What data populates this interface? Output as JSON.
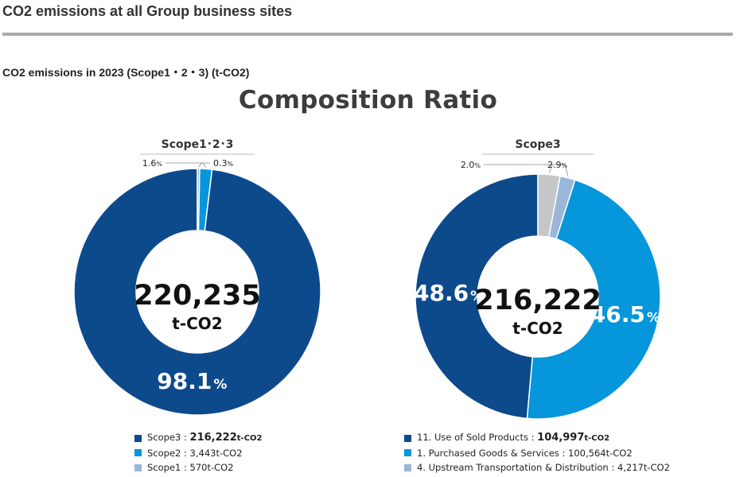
{
  "page": {
    "heading": "CO2 emissions at all Group business sites",
    "section_title": "CO2 emissions in 2023 (Scope1・2・3) (t-CO2)"
  },
  "figure": {
    "title": "Composition Ratio"
  },
  "colors": {
    "dark_blue": "#0d4a8c",
    "bright_blue": "#0696db",
    "light_blue": "#9ab6d9",
    "gray": "#c4c6c8"
  },
  "chart_data": [
    {
      "type": "pie",
      "title": "Scope1･2･3",
      "center_value": "220,235",
      "center_unit": "t-CO2",
      "slices": [
        {
          "name": "Scope3",
          "percent": 98.1,
          "label": "98.1",
          "label_suffix": "%",
          "color": "#0d4a8c",
          "label_style": "inside"
        },
        {
          "name": "Scope2",
          "percent": 1.6,
          "label": "1.6",
          "label_suffix": "%",
          "color": "#0696db",
          "label_style": "callout-left"
        },
        {
          "name": "Scope1",
          "percent": 0.3,
          "label": "0.3",
          "label_suffix": "%",
          "color": "#9ab6d9",
          "label_style": "callout-right"
        }
      ],
      "legend": [
        {
          "prefix": "Scope3 : ",
          "value": "216,222",
          "unit": "t-CO2",
          "emphasis": true,
          "color": "#0d4a8c"
        },
        {
          "prefix": "Scope2 : ",
          "value": "3,443t-CO2",
          "unit": "",
          "emphasis": false,
          "color": "#0696db"
        },
        {
          "prefix": "Scope1 : ",
          "value": "570t-CO2",
          "unit": "",
          "emphasis": false,
          "color": "#9ab6d9"
        }
      ]
    },
    {
      "type": "pie",
      "title": "Scope3",
      "center_value": "216,222",
      "center_unit": "t-CO2",
      "slices": [
        {
          "name": "11. Use of Sold Products",
          "percent": 48.6,
          "label": "48.6",
          "label_suffix": "%",
          "color": "#0d4a8c",
          "label_style": "inside"
        },
        {
          "name": "1. Purchased Goods & Services",
          "percent": 46.5,
          "label": "46.5",
          "label_suffix": "%",
          "color": "#0696db",
          "label_style": "inside"
        },
        {
          "name": "4. Upstream Transportation & Distribution",
          "percent": 2.0,
          "label": "2.0",
          "label_suffix": "%",
          "color": "#9ab6d9",
          "label_style": "callout-left"
        },
        {
          "name": "",
          "percent": 2.9,
          "label": "2.9",
          "label_suffix": "%",
          "color": "#c4c6c8",
          "label_style": "callout-right"
        }
      ],
      "legend": [
        {
          "prefix": "11. Use of Sold Products : ",
          "value": "104,997",
          "unit": "t-CO2",
          "emphasis": true,
          "color": "#0d4a8c"
        },
        {
          "prefix": "1. Purchased Goods & Services : ",
          "value": "100,564t-CO2",
          "unit": "",
          "emphasis": false,
          "color": "#0696db"
        },
        {
          "prefix": "4. Upstream Transportation & Distribution : ",
          "value": "4,217t-CO2",
          "unit": "",
          "emphasis": false,
          "color": "#9ab6d9"
        }
      ]
    }
  ]
}
